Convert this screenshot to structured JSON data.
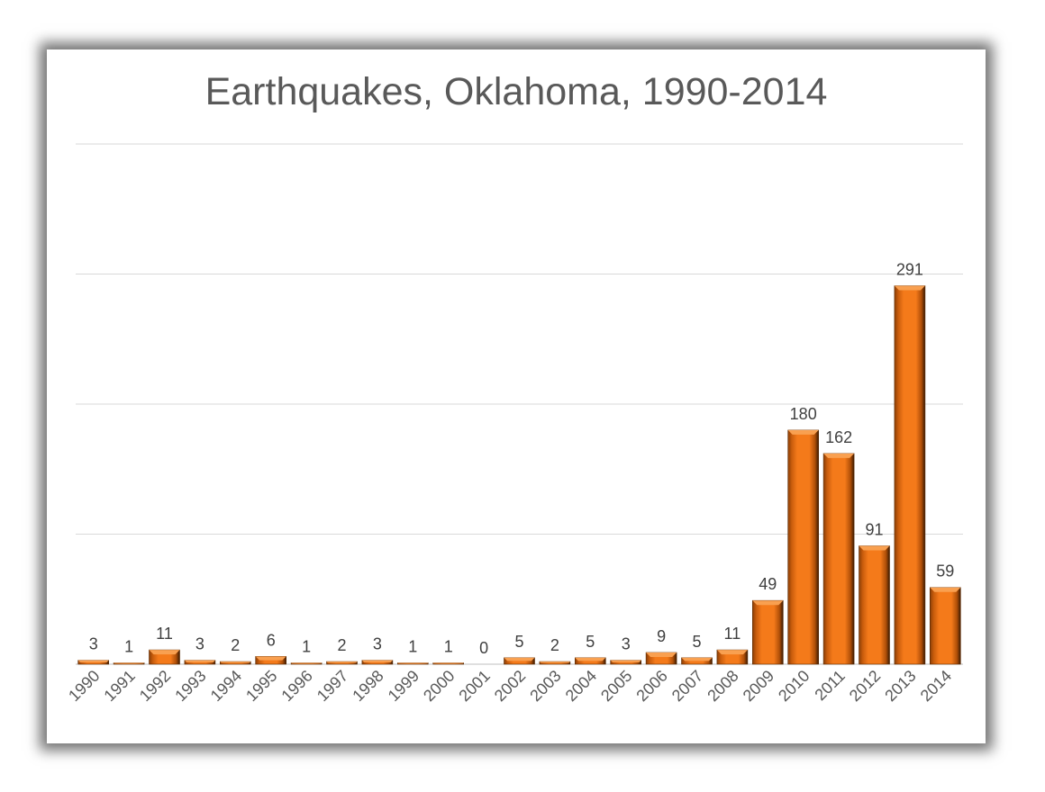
{
  "chart_data": {
    "type": "bar",
    "title": "Earthquakes, Oklahoma, 1990-2014",
    "categories": [
      "1990",
      "1991",
      "1992",
      "1993",
      "1994",
      "1995",
      "1996",
      "1997",
      "1998",
      "1999",
      "2000",
      "2001",
      "2002",
      "2003",
      "2004",
      "2005",
      "2006",
      "2007",
      "2008",
      "2009",
      "2010",
      "2011",
      "2012",
      "2013",
      "2014"
    ],
    "values": [
      3,
      1,
      11,
      3,
      2,
      6,
      1,
      2,
      3,
      1,
      1,
      0,
      5,
      2,
      5,
      3,
      9,
      5,
      11,
      49,
      180,
      162,
      91,
      291,
      59
    ],
    "ylim": [
      0,
      400
    ],
    "gridlines": [
      0,
      100,
      200,
      300,
      400
    ],
    "grid": true,
    "y_tick_labels_shown": false,
    "data_labels": true,
    "bar_color": "#F07818",
    "xlabel": "",
    "ylabel": ""
  }
}
